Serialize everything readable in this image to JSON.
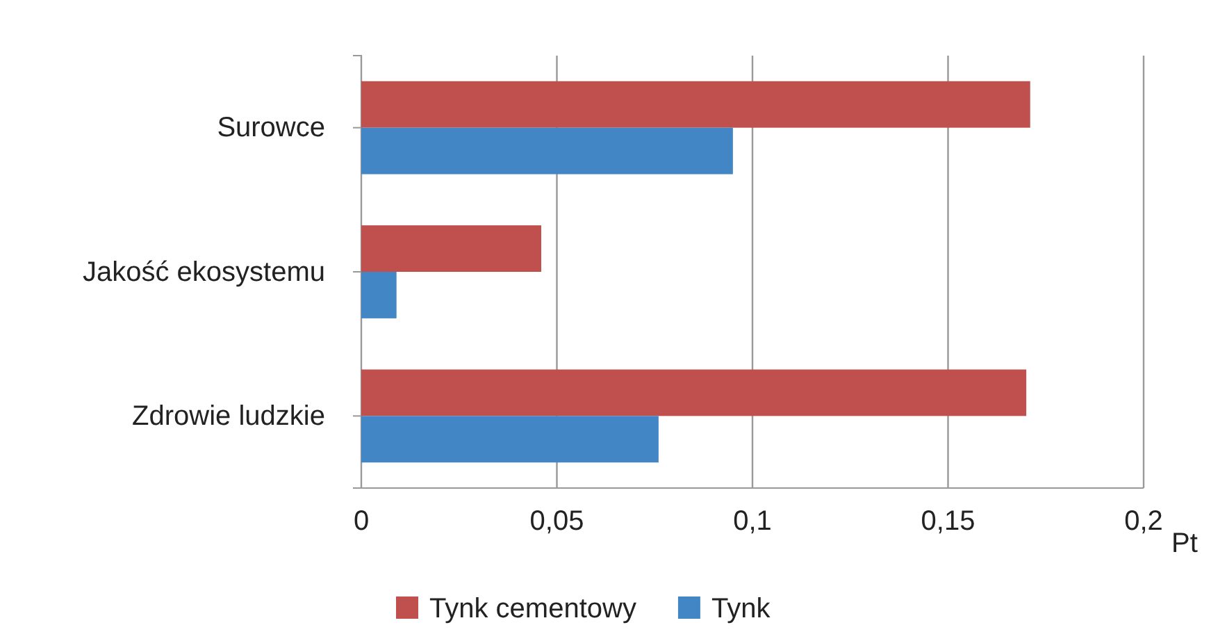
{
  "chart_data": {
    "type": "bar",
    "orientation": "horizontal",
    "categories": [
      "Surowce",
      "Jakość ekosystemu",
      "Zdrowie ludzkie"
    ],
    "series": [
      {
        "name": "Tynk cementowy",
        "color": "#c0504d",
        "values": [
          0.171,
          0.046,
          0.17
        ]
      },
      {
        "name": "Tynk",
        "color": "#4386c6",
        "values": [
          0.095,
          0.009,
          0.076
        ]
      }
    ],
    "xlim": [
      0,
      0.2
    ],
    "xticks": [
      {
        "value": 0,
        "label": "0"
      },
      {
        "value": 0.05,
        "label": "0,05"
      },
      {
        "value": 0.1,
        "label": "0,1"
      },
      {
        "value": 0.15,
        "label": "0,15"
      },
      {
        "value": 0.2,
        "label": "0,2"
      }
    ],
    "xlabel": "Pt",
    "grid": "x",
    "legend": "bottom"
  }
}
